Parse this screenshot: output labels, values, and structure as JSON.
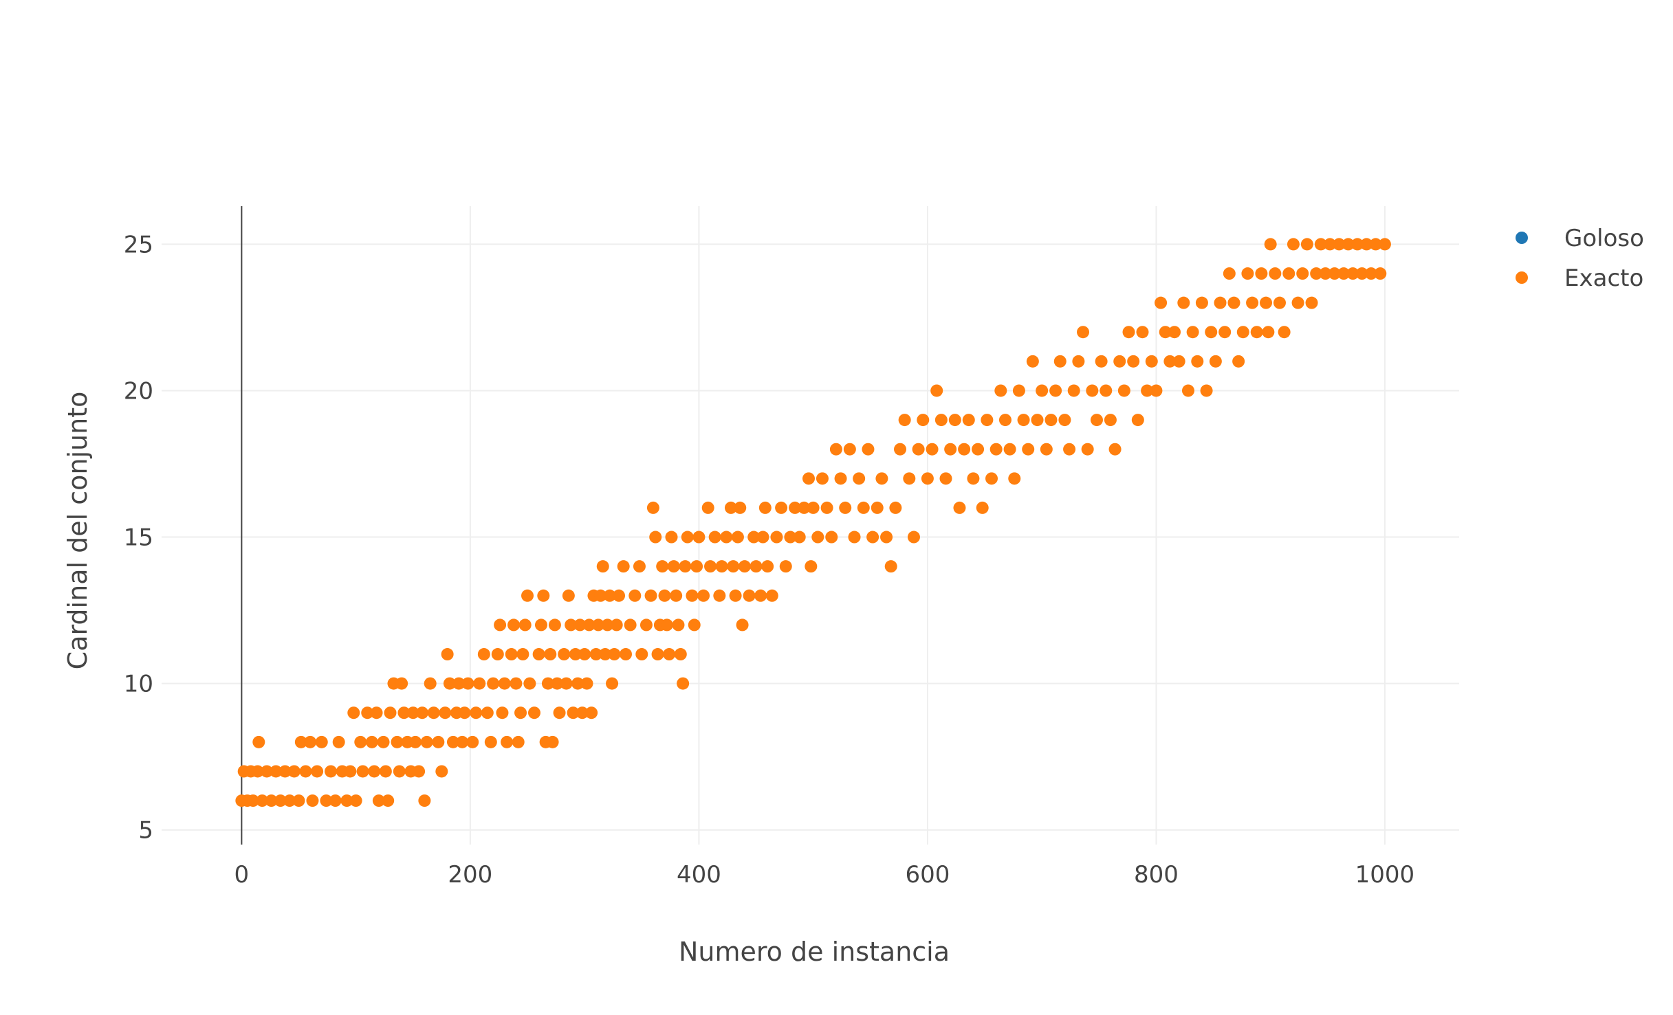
{
  "chart_data": {
    "type": "scatter",
    "title": "",
    "xlabel": "Numero de instancia",
    "ylabel": "Cardinal del conjunto",
    "xlim": [
      -70,
      1065
    ],
    "ylim": [
      4.5,
      26.3
    ],
    "xticks": [
      0,
      200,
      400,
      600,
      800,
      1000
    ],
    "yticks": [
      5,
      10,
      15,
      20,
      25
    ],
    "xtick_labels": [
      "0",
      "200",
      "400",
      "600",
      "800",
      "1000"
    ],
    "ytick_labels": [
      "5",
      "10",
      "15",
      "20",
      "25"
    ],
    "grid": true,
    "legend_position": "top-right",
    "x_range_observed": [
      0,
      1000
    ],
    "y_range_observed": [
      6,
      25
    ],
    "series": [
      {
        "name": "Goloso",
        "color": "#1f77b4",
        "points": []
      },
      {
        "name": "Exacto",
        "color": "#ff7f0e",
        "points": [
          [
            0,
            6
          ],
          [
            2,
            7
          ],
          [
            5,
            6
          ],
          [
            8,
            7
          ],
          [
            10,
            6
          ],
          [
            14,
            7
          ],
          [
            15,
            8
          ],
          [
            18,
            6
          ],
          [
            22,
            7
          ],
          [
            26,
            6
          ],
          [
            30,
            7
          ],
          [
            34,
            6
          ],
          [
            38,
            7
          ],
          [
            42,
            6
          ],
          [
            46,
            7
          ],
          [
            50,
            6
          ],
          [
            52,
            8
          ],
          [
            56,
            7
          ],
          [
            60,
            8
          ],
          [
            62,
            6
          ],
          [
            66,
            7
          ],
          [
            70,
            8
          ],
          [
            74,
            6
          ],
          [
            78,
            7
          ],
          [
            82,
            6
          ],
          [
            85,
            8
          ],
          [
            88,
            7
          ],
          [
            92,
            6
          ],
          [
            95,
            7
          ],
          [
            98,
            9
          ],
          [
            100,
            6
          ],
          [
            104,
            8
          ],
          [
            106,
            7
          ],
          [
            110,
            9
          ],
          [
            114,
            8
          ],
          [
            116,
            7
          ],
          [
            118,
            9
          ],
          [
            120,
            6
          ],
          [
            124,
            8
          ],
          [
            126,
            7
          ],
          [
            128,
            6
          ],
          [
            130,
            9
          ],
          [
            133,
            10
          ],
          [
            136,
            8
          ],
          [
            138,
            7
          ],
          [
            140,
            10
          ],
          [
            142,
            9
          ],
          [
            145,
            8
          ],
          [
            148,
            7
          ],
          [
            150,
            9
          ],
          [
            152,
            8
          ],
          [
            155,
            7
          ],
          [
            158,
            9
          ],
          [
            160,
            6
          ],
          [
            162,
            8
          ],
          [
            165,
            10
          ],
          [
            168,
            9
          ],
          [
            172,
            8
          ],
          [
            175,
            7
          ],
          [
            178,
            9
          ],
          [
            180,
            11
          ],
          [
            182,
            10
          ],
          [
            185,
            8
          ],
          [
            188,
            9
          ],
          [
            190,
            10
          ],
          [
            193,
            8
          ],
          [
            195,
            9
          ],
          [
            198,
            10
          ],
          [
            202,
            8
          ],
          [
            205,
            9
          ],
          [
            208,
            10
          ],
          [
            212,
            11
          ],
          [
            215,
            9
          ],
          [
            218,
            8
          ],
          [
            220,
            10
          ],
          [
            224,
            11
          ],
          [
            226,
            12
          ],
          [
            228,
            9
          ],
          [
            230,
            10
          ],
          [
            232,
            8
          ],
          [
            236,
            11
          ],
          [
            238,
            12
          ],
          [
            240,
            10
          ],
          [
            242,
            8
          ],
          [
            244,
            9
          ],
          [
            246,
            11
          ],
          [
            248,
            12
          ],
          [
            250,
            13
          ],
          [
            252,
            10
          ],
          [
            256,
            9
          ],
          [
            260,
            11
          ],
          [
            262,
            12
          ],
          [
            264,
            13
          ],
          [
            266,
            8
          ],
          [
            268,
            10
          ],
          [
            270,
            11
          ],
          [
            272,
            8
          ],
          [
            274,
            12
          ],
          [
            276,
            10
          ],
          [
            278,
            9
          ],
          [
            282,
            11
          ],
          [
            284,
            10
          ],
          [
            286,
            13
          ],
          [
            288,
            12
          ],
          [
            290,
            9
          ],
          [
            292,
            11
          ],
          [
            294,
            10
          ],
          [
            296,
            12
          ],
          [
            298,
            9
          ],
          [
            300,
            11
          ],
          [
            302,
            10
          ],
          [
            304,
            12
          ],
          [
            306,
            9
          ],
          [
            308,
            13
          ],
          [
            310,
            11
          ],
          [
            312,
            12
          ],
          [
            314,
            13
          ],
          [
            316,
            14
          ],
          [
            318,
            11
          ],
          [
            320,
            12
          ],
          [
            322,
            13
          ],
          [
            324,
            10
          ],
          [
            326,
            11
          ],
          [
            328,
            12
          ],
          [
            330,
            13
          ],
          [
            334,
            14
          ],
          [
            336,
            11
          ],
          [
            340,
            12
          ],
          [
            344,
            13
          ],
          [
            348,
            14
          ],
          [
            350,
            11
          ],
          [
            354,
            12
          ],
          [
            358,
            13
          ],
          [
            360,
            16
          ],
          [
            362,
            15
          ],
          [
            364,
            11
          ],
          [
            366,
            12
          ],
          [
            368,
            14
          ],
          [
            370,
            13
          ],
          [
            372,
            12
          ],
          [
            374,
            11
          ],
          [
            376,
            15
          ],
          [
            378,
            14
          ],
          [
            380,
            13
          ],
          [
            382,
            12
          ],
          [
            384,
            11
          ],
          [
            386,
            10
          ],
          [
            388,
            14
          ],
          [
            390,
            15
          ],
          [
            394,
            13
          ],
          [
            396,
            12
          ],
          [
            398,
            14
          ],
          [
            400,
            15
          ],
          [
            404,
            13
          ],
          [
            408,
            16
          ],
          [
            410,
            14
          ],
          [
            414,
            15
          ],
          [
            418,
            13
          ],
          [
            420,
            14
          ],
          [
            424,
            15
          ],
          [
            428,
            16
          ],
          [
            430,
            14
          ],
          [
            432,
            13
          ],
          [
            434,
            15
          ],
          [
            436,
            16
          ],
          [
            438,
            12
          ],
          [
            440,
            14
          ],
          [
            444,
            13
          ],
          [
            448,
            15
          ],
          [
            450,
            14
          ],
          [
            454,
            13
          ],
          [
            456,
            15
          ],
          [
            458,
            16
          ],
          [
            460,
            14
          ],
          [
            464,
            13
          ],
          [
            468,
            15
          ],
          [
            472,
            16
          ],
          [
            476,
            14
          ],
          [
            480,
            15
          ],
          [
            484,
            16
          ],
          [
            488,
            15
          ],
          [
            492,
            16
          ],
          [
            496,
            17
          ],
          [
            498,
            14
          ],
          [
            500,
            16
          ],
          [
            504,
            15
          ],
          [
            508,
            17
          ],
          [
            512,
            16
          ],
          [
            516,
            15
          ],
          [
            520,
            18
          ],
          [
            524,
            17
          ],
          [
            528,
            16
          ],
          [
            532,
            18
          ],
          [
            536,
            15
          ],
          [
            540,
            17
          ],
          [
            544,
            16
          ],
          [
            548,
            18
          ],
          [
            552,
            15
          ],
          [
            556,
            16
          ],
          [
            560,
            17
          ],
          [
            564,
            15
          ],
          [
            568,
            14
          ],
          [
            572,
            16
          ],
          [
            576,
            18
          ],
          [
            580,
            19
          ],
          [
            584,
            17
          ],
          [
            588,
            15
          ],
          [
            592,
            18
          ],
          [
            596,
            19
          ],
          [
            600,
            17
          ],
          [
            604,
            18
          ],
          [
            608,
            20
          ],
          [
            612,
            19
          ],
          [
            616,
            17
          ],
          [
            620,
            18
          ],
          [
            624,
            19
          ],
          [
            628,
            16
          ],
          [
            632,
            18
          ],
          [
            636,
            19
          ],
          [
            640,
            17
          ],
          [
            644,
            18
          ],
          [
            648,
            16
          ],
          [
            652,
            19
          ],
          [
            656,
            17
          ],
          [
            660,
            18
          ],
          [
            664,
            20
          ],
          [
            668,
            19
          ],
          [
            672,
            18
          ],
          [
            676,
            17
          ],
          [
            680,
            20
          ],
          [
            684,
            19
          ],
          [
            688,
            18
          ],
          [
            692,
            21
          ],
          [
            696,
            19
          ],
          [
            700,
            20
          ],
          [
            704,
            18
          ],
          [
            708,
            19
          ],
          [
            712,
            20
          ],
          [
            716,
            21
          ],
          [
            720,
            19
          ],
          [
            724,
            18
          ],
          [
            728,
            20
          ],
          [
            732,
            21
          ],
          [
            736,
            22
          ],
          [
            740,
            18
          ],
          [
            744,
            20
          ],
          [
            748,
            19
          ],
          [
            752,
            21
          ],
          [
            756,
            20
          ],
          [
            760,
            19
          ],
          [
            764,
            18
          ],
          [
            768,
            21
          ],
          [
            772,
            20
          ],
          [
            776,
            22
          ],
          [
            780,
            21
          ],
          [
            784,
            19
          ],
          [
            788,
            22
          ],
          [
            792,
            20
          ],
          [
            796,
            21
          ],
          [
            800,
            20
          ],
          [
            804,
            23
          ],
          [
            808,
            22
          ],
          [
            812,
            21
          ],
          [
            816,
            22
          ],
          [
            820,
            21
          ],
          [
            824,
            23
          ],
          [
            828,
            20
          ],
          [
            832,
            22
          ],
          [
            836,
            21
          ],
          [
            840,
            23
          ],
          [
            844,
            20
          ],
          [
            848,
            22
          ],
          [
            852,
            21
          ],
          [
            856,
            23
          ],
          [
            860,
            22
          ],
          [
            864,
            24
          ],
          [
            868,
            23
          ],
          [
            872,
            21
          ],
          [
            876,
            22
          ],
          [
            880,
            24
          ],
          [
            884,
            23
          ],
          [
            888,
            22
          ],
          [
            892,
            24
          ],
          [
            896,
            23
          ],
          [
            898,
            22
          ],
          [
            900,
            25
          ],
          [
            904,
            24
          ],
          [
            908,
            23
          ],
          [
            912,
            22
          ],
          [
            916,
            24
          ],
          [
            920,
            25
          ],
          [
            924,
            23
          ],
          [
            928,
            24
          ],
          [
            932,
            25
          ],
          [
            936,
            23
          ],
          [
            940,
            24
          ],
          [
            944,
            25
          ],
          [
            948,
            24
          ],
          [
            952,
            25
          ],
          [
            956,
            24
          ],
          [
            960,
            25
          ],
          [
            964,
            24
          ],
          [
            968,
            25
          ],
          [
            972,
            24
          ],
          [
            976,
            25
          ],
          [
            980,
            24
          ],
          [
            984,
            25
          ],
          [
            988,
            24
          ],
          [
            992,
            25
          ],
          [
            996,
            24
          ],
          [
            1000,
            25
          ]
        ]
      }
    ]
  }
}
